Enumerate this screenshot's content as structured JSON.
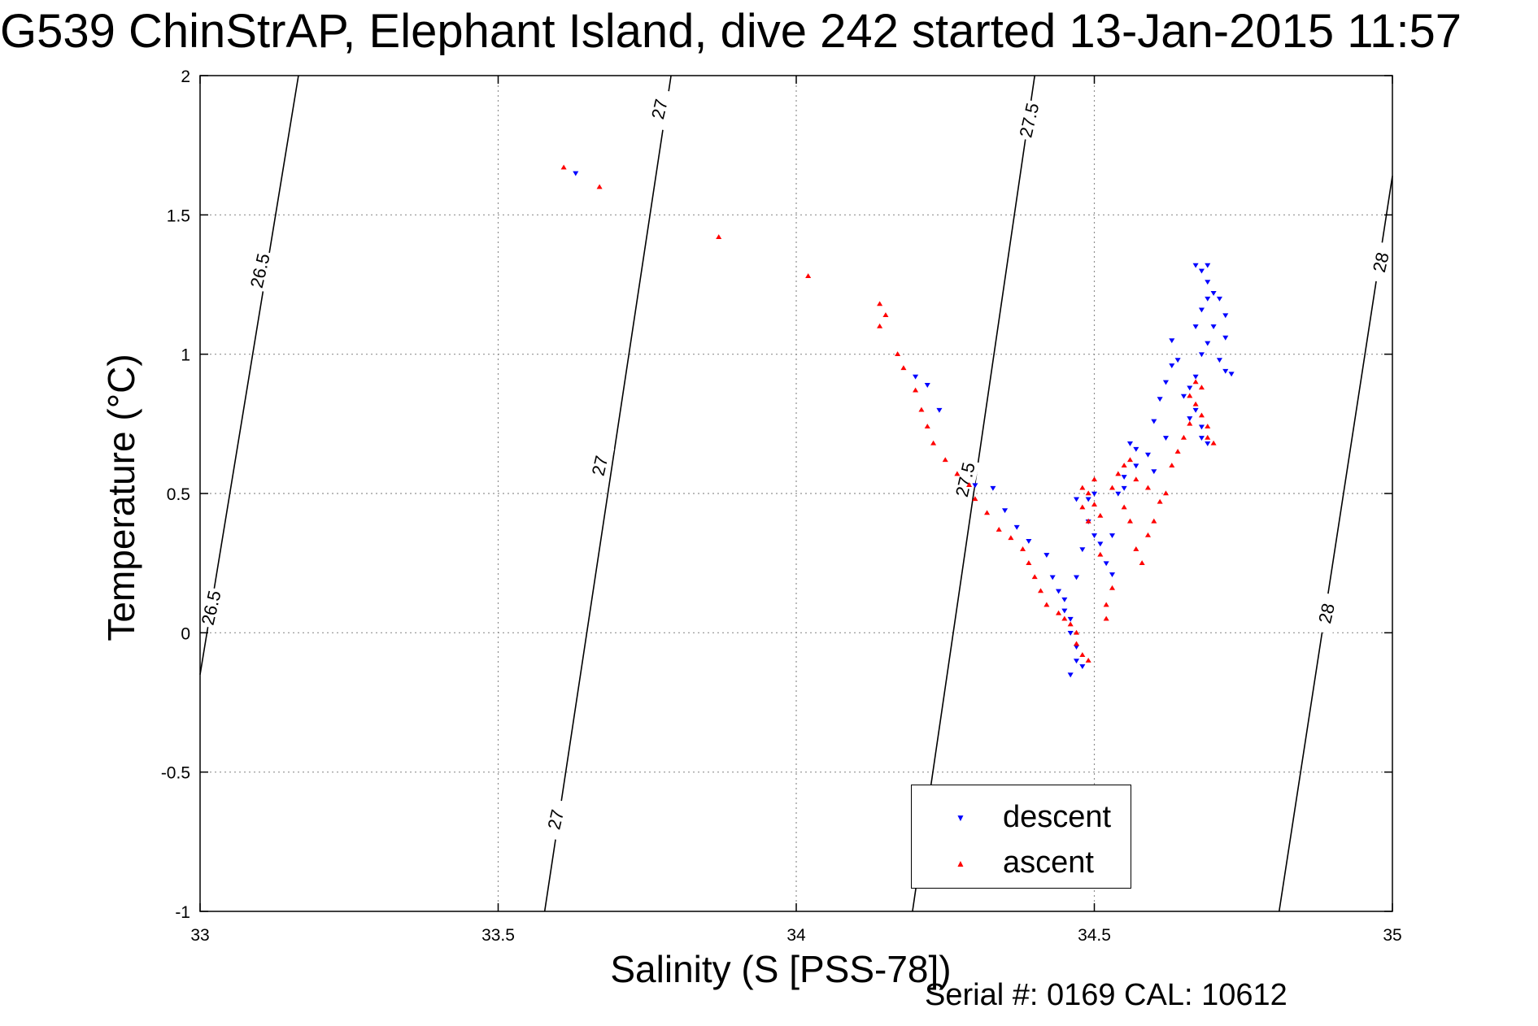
{
  "title": "G539 ChinStrAP, Elephant Island, dive 242 started 13-Jan-2015 11:57",
  "serial_note": "Serial #: 0169 CAL: 10612",
  "colors": {
    "descent": "#0000ff",
    "ascent": "#ff0000",
    "grid": "#909090",
    "contour": "#000000"
  },
  "chart_data": {
    "type": "scatter",
    "title": "G539 ChinStrAP, Elephant Island, dive 242 started 13-Jan-2015 11:57",
    "xlabel": "Salinity (S [PSS-78])",
    "ylabel": "Temperature (°C)",
    "xlim": [
      33,
      35
    ],
    "ylim": [
      -1,
      2
    ],
    "x_ticks": [
      "33",
      "33.5",
      "34",
      "34.5",
      "35"
    ],
    "y_ticks": [
      "-1",
      "-0.5",
      "0",
      "0.5",
      "1",
      "1.5",
      "2"
    ],
    "grid": true,
    "legend_position": "bottom-center",
    "density_contours": [
      {
        "level": "26.5",
        "points": [
          [
            33.0,
            -0.15
          ],
          [
            33.165,
            2.0
          ]
        ]
      },
      {
        "level": "27",
        "points": [
          [
            33.578,
            -1.0
          ],
          [
            33.79,
            2.0
          ]
        ]
      },
      {
        "level": "27.5",
        "points": [
          [
            34.195,
            -1.0
          ],
          [
            34.4,
            2.0
          ]
        ]
      },
      {
        "level": "28",
        "points": [
          [
            34.81,
            -1.0
          ],
          [
            35.0,
            1.64
          ]
        ]
      }
    ],
    "contour_labels": [
      {
        "text": "26.5",
        "x": 33.1,
        "y": 1.3
      },
      {
        "text": "26.5",
        "x": 33.018,
        "y": 0.09
      },
      {
        "text": "27",
        "x": 33.77,
        "y": 1.88
      },
      {
        "text": "27",
        "x": 33.67,
        "y": 0.6
      },
      {
        "text": "27",
        "x": 33.596,
        "y": -0.67
      },
      {
        "text": "27.5",
        "x": 34.39,
        "y": 1.84
      },
      {
        "text": "27.5",
        "x": 34.283,
        "y": 0.55
      },
      {
        "text": "28",
        "x": 34.98,
        "y": 1.33
      },
      {
        "text": "28",
        "x": 34.889,
        "y": 0.07
      }
    ],
    "series": [
      {
        "name": "descent",
        "marker": "triangle-down",
        "points": [
          [
            33.63,
            1.65
          ],
          [
            34.2,
            0.92
          ],
          [
            34.22,
            0.89
          ],
          [
            34.24,
            0.8
          ],
          [
            34.3,
            0.53
          ],
          [
            34.33,
            0.52
          ],
          [
            34.35,
            0.44
          ],
          [
            34.37,
            0.38
          ],
          [
            34.39,
            0.33
          ],
          [
            34.42,
            0.28
          ],
          [
            34.43,
            0.2
          ],
          [
            34.44,
            0.15
          ],
          [
            34.45,
            0.12
          ],
          [
            34.45,
            0.08
          ],
          [
            34.46,
            0.05
          ],
          [
            34.46,
            0.0
          ],
          [
            34.47,
            -0.05
          ],
          [
            34.47,
            -0.1
          ],
          [
            34.46,
            -0.15
          ],
          [
            34.48,
            -0.12
          ],
          [
            34.47,
            0.2
          ],
          [
            34.48,
            0.3
          ],
          [
            34.49,
            0.4
          ],
          [
            34.47,
            0.48
          ],
          [
            34.49,
            0.48
          ],
          [
            34.5,
            0.5
          ],
          [
            34.5,
            0.35
          ],
          [
            34.51,
            0.32
          ],
          [
            34.53,
            0.35
          ],
          [
            34.52,
            0.25
          ],
          [
            34.53,
            0.21
          ],
          [
            34.54,
            0.5
          ],
          [
            34.55,
            0.52
          ],
          [
            34.55,
            0.56
          ],
          [
            34.57,
            0.6
          ],
          [
            34.57,
            0.66
          ],
          [
            34.56,
            0.68
          ],
          [
            34.59,
            0.64
          ],
          [
            34.6,
            0.58
          ],
          [
            34.62,
            0.7
          ],
          [
            34.6,
            0.76
          ],
          [
            34.61,
            0.84
          ],
          [
            34.62,
            0.9
          ],
          [
            34.63,
            0.96
          ],
          [
            34.64,
            0.98
          ],
          [
            34.63,
            1.05
          ],
          [
            34.65,
            0.85
          ],
          [
            34.66,
            0.88
          ],
          [
            34.67,
            0.92
          ],
          [
            34.66,
            0.77
          ],
          [
            34.67,
            0.8
          ],
          [
            34.68,
            0.74
          ],
          [
            34.68,
            0.7
          ],
          [
            34.69,
            0.68
          ],
          [
            34.68,
            1.0
          ],
          [
            34.69,
            1.04
          ],
          [
            34.7,
            1.1
          ],
          [
            34.67,
            1.1
          ],
          [
            34.68,
            1.16
          ],
          [
            34.69,
            1.2
          ],
          [
            34.7,
            1.22
          ],
          [
            34.69,
            1.26
          ],
          [
            34.68,
            1.3
          ],
          [
            34.67,
            1.32
          ],
          [
            34.69,
            1.32
          ],
          [
            34.71,
            1.2
          ],
          [
            34.72,
            1.14
          ],
          [
            34.72,
            1.06
          ],
          [
            34.71,
            0.98
          ],
          [
            34.72,
            0.94
          ],
          [
            34.73,
            0.93
          ]
        ]
      },
      {
        "name": "ascent",
        "marker": "triangle-up",
        "points": [
          [
            33.61,
            1.67
          ],
          [
            33.67,
            1.6
          ],
          [
            33.87,
            1.42
          ],
          [
            34.02,
            1.28
          ],
          [
            34.14,
            1.18
          ],
          [
            34.15,
            1.14
          ],
          [
            34.14,
            1.1
          ],
          [
            34.17,
            1.0
          ],
          [
            34.18,
            0.95
          ],
          [
            34.2,
            0.87
          ],
          [
            34.21,
            0.8
          ],
          [
            34.22,
            0.74
          ],
          [
            34.23,
            0.68
          ],
          [
            34.25,
            0.62
          ],
          [
            34.27,
            0.57
          ],
          [
            34.29,
            0.53
          ],
          [
            34.3,
            0.48
          ],
          [
            34.32,
            0.43
          ],
          [
            34.34,
            0.37
          ],
          [
            34.36,
            0.34
          ],
          [
            34.38,
            0.3
          ],
          [
            34.39,
            0.25
          ],
          [
            34.4,
            0.2
          ],
          [
            34.41,
            0.15
          ],
          [
            34.42,
            0.1
          ],
          [
            34.44,
            0.07
          ],
          [
            34.45,
            0.05
          ],
          [
            34.46,
            0.03
          ],
          [
            34.47,
            0.0
          ],
          [
            34.47,
            -0.04
          ],
          [
            34.48,
            -0.08
          ],
          [
            34.49,
            -0.1
          ],
          [
            34.48,
            0.45
          ],
          [
            34.48,
            0.52
          ],
          [
            34.49,
            0.4
          ],
          [
            34.49,
            0.5
          ],
          [
            34.5,
            0.46
          ],
          [
            34.5,
            0.55
          ],
          [
            34.51,
            0.42
          ],
          [
            34.51,
            0.28
          ],
          [
            34.52,
            0.1
          ],
          [
            34.52,
            0.05
          ],
          [
            34.53,
            0.16
          ],
          [
            34.53,
            0.52
          ],
          [
            34.54,
            0.57
          ],
          [
            34.55,
            0.45
          ],
          [
            34.55,
            0.6
          ],
          [
            34.56,
            0.4
          ],
          [
            34.56,
            0.62
          ],
          [
            34.57,
            0.3
          ],
          [
            34.57,
            0.55
          ],
          [
            34.58,
            0.25
          ],
          [
            34.59,
            0.35
          ],
          [
            34.59,
            0.52
          ],
          [
            34.6,
            0.4
          ],
          [
            34.61,
            0.47
          ],
          [
            34.62,
            0.5
          ],
          [
            34.63,
            0.6
          ],
          [
            34.64,
            0.65
          ],
          [
            34.65,
            0.7
          ],
          [
            34.66,
            0.75
          ],
          [
            34.66,
            0.85
          ],
          [
            34.67,
            0.82
          ],
          [
            34.67,
            0.9
          ],
          [
            34.68,
            0.88
          ],
          [
            34.68,
            0.78
          ],
          [
            34.69,
            0.74
          ],
          [
            34.69,
            0.7
          ],
          [
            34.7,
            0.68
          ]
        ]
      }
    ]
  }
}
